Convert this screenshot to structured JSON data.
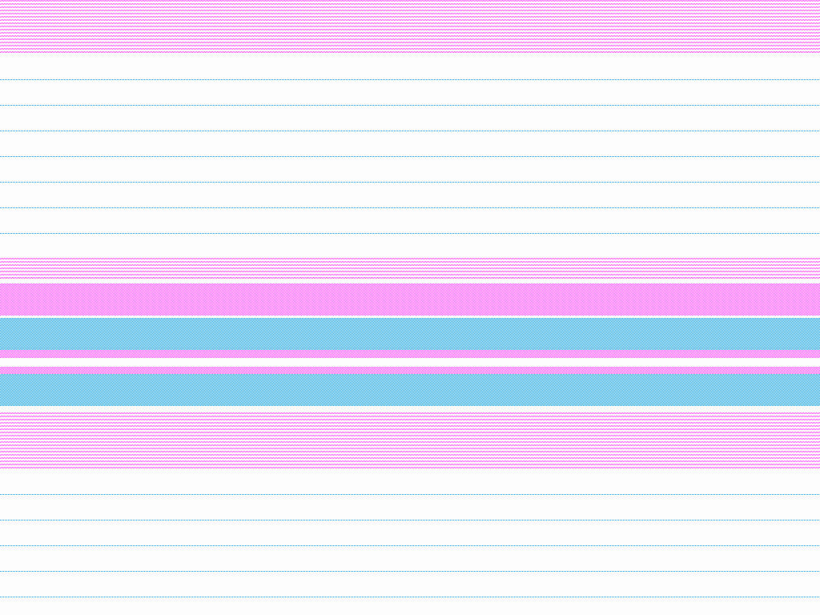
{
  "colors": {
    "magenta": "#ff44ff",
    "cyan": "#0aa0e0",
    "background": "#fdfdfd"
  }
}
